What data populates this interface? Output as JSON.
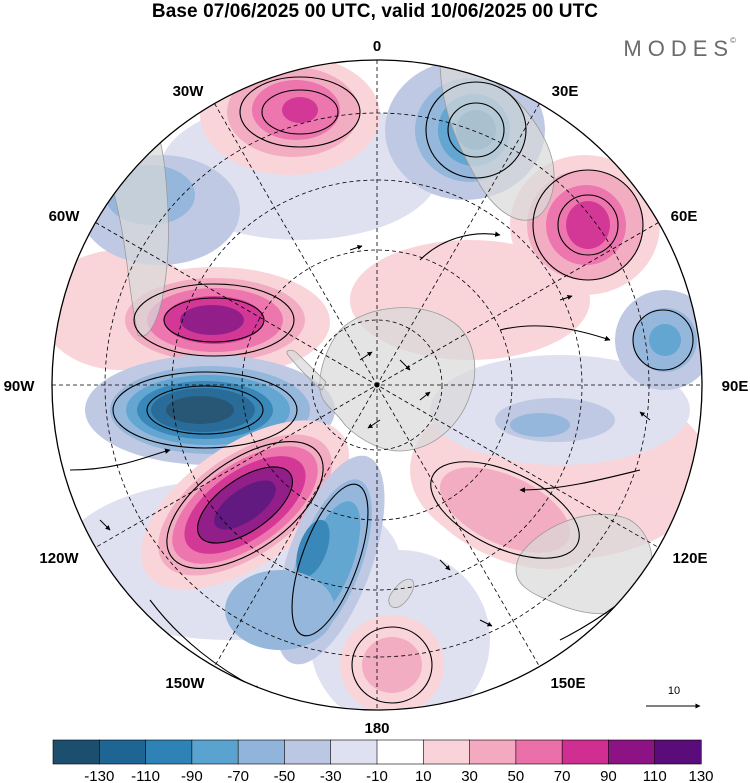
{
  "title": "Base 07/06/2025 00 UTC, valid 10/06/2025 00 UTC",
  "brand": {
    "name": "MODES",
    "mark": "©"
  },
  "longitude_labels": {
    "lon_0": "0",
    "lon_30e": "30E",
    "lon_60e": "60E",
    "lon_90e": "90E",
    "lon_120e": "120E",
    "lon_150e": "150E",
    "lon_180": "180",
    "lon_150w": "150W",
    "lon_120w": "120W",
    "lon_90w": "90W",
    "lon_60w": "60W",
    "lon_30w": "30W"
  },
  "reference_vector": {
    "value": "10"
  },
  "colorbar": {
    "colors": [
      "#1c4f6e",
      "#1f6594",
      "#2f82b6",
      "#5aa2cf",
      "#90b4db",
      "#bcc7e3",
      "#dfe0f0",
      "#ffffff",
      "#f9d3d9",
      "#f3a9bf",
      "#eb6fa9",
      "#d12e92",
      "#8d1283",
      "#5a0d7a"
    ],
    "labels": [
      "-130",
      "-110",
      "-90",
      "-70",
      "-50",
      "-30",
      "-10",
      "10",
      "30",
      "50",
      "70",
      "90",
      "110",
      "130"
    ]
  },
  "map_colors": {
    "ocean_background": "#ffffff",
    "land": "#d8d8d8",
    "land_edge": "#9a9a9a",
    "graticule": "#000000"
  }
}
